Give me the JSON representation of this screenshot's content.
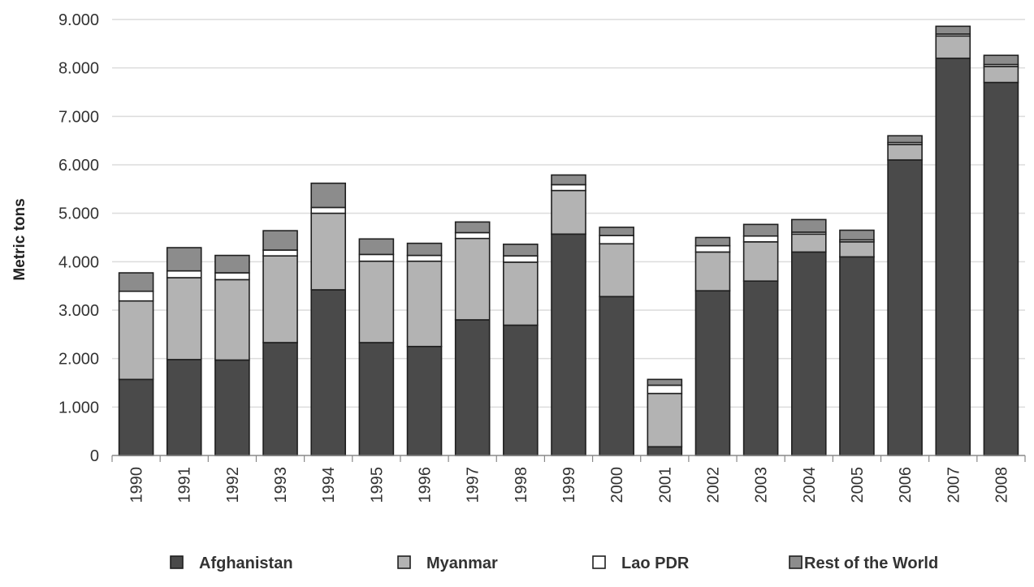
{
  "chart_data": {
    "type": "bar",
    "stacked": true,
    "title": "",
    "xlabel": "",
    "ylabel": "Metric tons",
    "ylim": [
      0,
      9000
    ],
    "y_ticks": [
      "0",
      "1.000",
      "2.000",
      "3.000",
      "4.000",
      "5.000",
      "6.000",
      "7.000",
      "8.000",
      "9.000"
    ],
    "grid": "horizontal",
    "legend_position": "bottom",
    "categories": [
      "1990",
      "1991",
      "1992",
      "1993",
      "1994",
      "1995",
      "1996",
      "1997",
      "1998",
      "1999",
      "2000",
      "2001",
      "2002",
      "2003",
      "2004",
      "2005",
      "2006",
      "2007",
      "2008"
    ],
    "series": [
      {
        "name": "Afghanistan",
        "color": "#4a4a4a",
        "values": [
          1570,
          1980,
          1970,
          2330,
          3420,
          2330,
          2250,
          2800,
          2690,
          4570,
          3280,
          180,
          3400,
          3600,
          4200,
          4100,
          6100,
          8200,
          7700
        ]
      },
      {
        "name": "Myanmar",
        "color": "#b3b3b3",
        "values": [
          1620,
          1690,
          1660,
          1790,
          1580,
          1680,
          1760,
          1680,
          1300,
          900,
          1090,
          1100,
          800,
          810,
          370,
          310,
          320,
          460,
          330
        ]
      },
      {
        "name": "Lao PDR",
        "color": "#ffffff",
        "values": [
          200,
          140,
          140,
          120,
          120,
          140,
          120,
          120,
          130,
          120,
          170,
          170,
          130,
          120,
          40,
          40,
          40,
          40,
          40
        ]
      },
      {
        "name": "Rest of the World",
        "color": "#8c8c8c",
        "values": [
          380,
          480,
          360,
          400,
          500,
          320,
          250,
          220,
          240,
          200,
          170,
          120,
          170,
          240,
          260,
          200,
          140,
          160,
          190
        ]
      }
    ]
  }
}
